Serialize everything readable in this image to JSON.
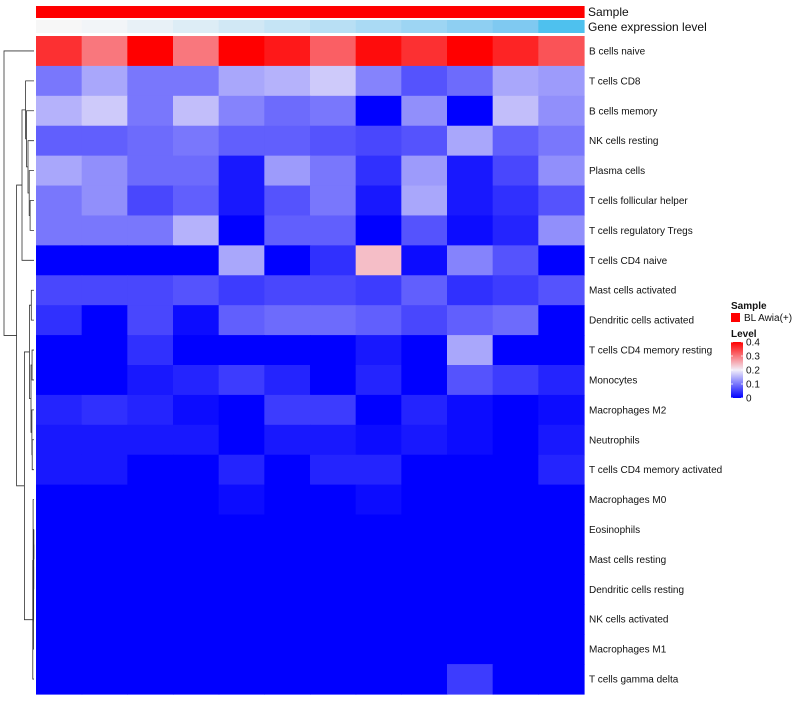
{
  "chart_data": {
    "type": "heatmap",
    "title": "",
    "xlabel": "",
    "ylabel": "",
    "annotations": [
      {
        "name": "Sample",
        "colors": [
          "#FF0000",
          "#FF0000",
          "#FF0000",
          "#FF0000",
          "#FF0000",
          "#FF0000",
          "#FF0000",
          "#FF0000",
          "#FF0000",
          "#FF0000",
          "#FF0000",
          "#FF0000"
        ]
      },
      {
        "name": "Gene expression level",
        "colors": [
          "#F7F7F7",
          "#F2F5F8",
          "#E8F1F7",
          "#DDEDF6",
          "#D1E8F5",
          "#C5E4F5",
          "#B8DFF4",
          "#AADAF4",
          "#9DD5F3",
          "#8ECFF2",
          "#7FC9F1",
          "#4EC1EE"
        ]
      }
    ],
    "row_labels": [
      "B cells naive",
      "T cells CD8",
      "B cells memory",
      "NK cells resting",
      "Plasma cells",
      "T cells follicular helper",
      "T cells regulatory  Tregs",
      "T cells CD4 naive",
      "Mast cells activated",
      "Dendritic cells activated",
      "T cells CD4 memory resting",
      "Monocytes",
      "Macrophages M2",
      "Neutrophils",
      "T cells CD4 memory activated",
      "Macrophages M0",
      "Eosinophils",
      "Mast cells resting",
      "Dendritic cells resting",
      "NK cells activated",
      "Macrophages M1",
      "T cells gamma delta"
    ],
    "n_columns": 12,
    "color_scale": {
      "stops": [
        {
          "value": 0.0,
          "color": "#0000FF"
        },
        {
          "value": 0.2,
          "color": "#F2EEF9"
        },
        {
          "value": 0.4,
          "color": "#FF0000"
        }
      ]
    },
    "values": [
      [
        0.36,
        0.3,
        0.4,
        0.3,
        0.4,
        0.38,
        0.32,
        0.39,
        0.36,
        0.4,
        0.37,
        0.33
      ],
      [
        0.1,
        0.14,
        0.1,
        0.1,
        0.14,
        0.15,
        0.17,
        0.11,
        0.07,
        0.09,
        0.14,
        0.13
      ],
      [
        0.15,
        0.17,
        0.1,
        0.16,
        0.11,
        0.09,
        0.1,
        0.0,
        0.12,
        0.0,
        0.16,
        0.12
      ],
      [
        0.08,
        0.08,
        0.09,
        0.1,
        0.08,
        0.08,
        0.07,
        0.06,
        0.07,
        0.14,
        0.08,
        0.1
      ],
      [
        0.14,
        0.12,
        0.09,
        0.09,
        0.02,
        0.13,
        0.1,
        0.04,
        0.13,
        0.02,
        0.06,
        0.12
      ],
      [
        0.1,
        0.12,
        0.06,
        0.08,
        0.02,
        0.07,
        0.1,
        0.02,
        0.14,
        0.02,
        0.04,
        0.07
      ],
      [
        0.1,
        0.1,
        0.1,
        0.15,
        0.0,
        0.08,
        0.08,
        0.0,
        0.07,
        0.01,
        0.03,
        0.12
      ],
      [
        0.0,
        0.0,
        0.0,
        0.0,
        0.14,
        0.0,
        0.04,
        0.24,
        0.01,
        0.11,
        0.07,
        0.0
      ],
      [
        0.06,
        0.06,
        0.06,
        0.07,
        0.05,
        0.06,
        0.06,
        0.05,
        0.08,
        0.04,
        0.05,
        0.07
      ],
      [
        0.04,
        0.0,
        0.06,
        0.01,
        0.08,
        0.09,
        0.09,
        0.08,
        0.06,
        0.08,
        0.09,
        0.0
      ],
      [
        0.0,
        0.0,
        0.04,
        0.0,
        0.0,
        0.0,
        0.0,
        0.02,
        0.0,
        0.14,
        0.0,
        0.0
      ],
      [
        0.0,
        0.0,
        0.02,
        0.03,
        0.05,
        0.03,
        0.0,
        0.03,
        0.0,
        0.07,
        0.05,
        0.03
      ],
      [
        0.03,
        0.04,
        0.03,
        0.01,
        0.0,
        0.05,
        0.05,
        0.0,
        0.03,
        0.01,
        0.0,
        0.01
      ],
      [
        0.02,
        0.02,
        0.02,
        0.02,
        0.0,
        0.02,
        0.02,
        0.01,
        0.02,
        0.01,
        0.0,
        0.02
      ],
      [
        0.02,
        0.02,
        0.0,
        0.0,
        0.03,
        0.0,
        0.03,
        0.03,
        0.0,
        0.0,
        0.0,
        0.03
      ],
      [
        0.0,
        0.0,
        0.0,
        0.0,
        0.01,
        0.0,
        0.0,
        0.01,
        0.0,
        0.0,
        0.0,
        0.0
      ],
      [
        0.0,
        0.0,
        0.0,
        0.0,
        0.0,
        0.0,
        0.0,
        0.0,
        0.0,
        0.0,
        0.0,
        0.0
      ],
      [
        0.0,
        0.0,
        0.0,
        0.0,
        0.0,
        0.0,
        0.0,
        0.0,
        0.0,
        0.0,
        0.0,
        0.0
      ],
      [
        0.0,
        0.0,
        0.0,
        0.0,
        0.0,
        0.0,
        0.0,
        0.0,
        0.0,
        0.0,
        0.0,
        0.0
      ],
      [
        0.0,
        0.0,
        0.0,
        0.0,
        0.0,
        0.0,
        0.0,
        0.0,
        0.0,
        0.0,
        0.0,
        0.0
      ],
      [
        0.0,
        0.0,
        0.0,
        0.0,
        0.0,
        0.0,
        0.0,
        0.0,
        0.0,
        0.0,
        0.0,
        0.0
      ],
      [
        0.0,
        0.0,
        0.0,
        0.0,
        0.0,
        0.0,
        0.0,
        0.0,
        0.0,
        0.05,
        0.0,
        0.0
      ]
    ],
    "dendrogram": {
      "merges": [
        [
          -17,
          -18
        ],
        [
          -19,
          1
        ],
        [
          -20,
          2
        ],
        [
          -21,
          3
        ],
        [
          -16,
          4
        ],
        [
          -22,
          5
        ],
        [
          -14,
          -15
        ],
        [
          -13,
          7
        ],
        [
          -11,
          -12
        ],
        [
          8,
          9
        ],
        [
          -9,
          -10
        ],
        [
          11,
          10
        ],
        [
          -6,
          -7
        ],
        [
          -5,
          13
        ],
        [
          -4,
          14
        ],
        [
          -3,
          15
        ],
        [
          -2,
          16
        ],
        [
          -8,
          17
        ],
        [
          12,
          6
        ],
        [
          18,
          19
        ],
        [
          -1,
          20
        ]
      ],
      "heights": [
        0.005,
        0.008,
        0.012,
        0.016,
        0.03,
        0.04,
        0.06,
        0.07,
        0.065,
        0.1,
        0.09,
        0.15,
        0.13,
        0.16,
        0.2,
        0.25,
        0.28,
        0.4,
        0.32,
        0.58,
        1.0
      ]
    },
    "legend": {
      "sample": {
        "title": "Sample",
        "items": [
          {
            "label": "BL Awia(+)",
            "color": "#FF0000"
          }
        ]
      },
      "level": {
        "title": "Level",
        "ticks": [
          0.4,
          0.3,
          0.2,
          0.1,
          0.0
        ],
        "tick_labels": [
          "0.4",
          "0.3",
          "0.2",
          "0.1",
          "0"
        ]
      }
    }
  }
}
